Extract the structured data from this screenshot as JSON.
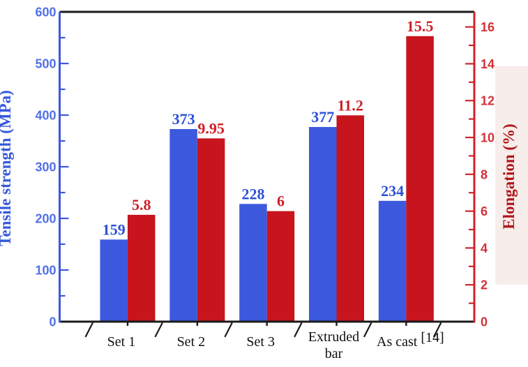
{
  "chart_data": {
    "type": "bar",
    "categories": [
      {
        "label": "Set 1"
      },
      {
        "label": "Set 2"
      },
      {
        "label": "Set 3"
      },
      {
        "label": "Extruded",
        "label2": "bar"
      },
      {
        "label": "As cast",
        "sup": "[14]"
      }
    ],
    "series": [
      {
        "name": "Tensile strength",
        "axis": "left",
        "color": "#3c59dd",
        "values": [
          159,
          373,
          228,
          377,
          234
        ],
        "labels": [
          "159",
          "373",
          "228",
          "377",
          "234"
        ],
        "label_color": "#2b50d8"
      },
      {
        "name": "Elongation",
        "axis": "right",
        "color": "#c8141d",
        "values": [
          5.8,
          9.95,
          6,
          11.2,
          15.5
        ],
        "labels": [
          "5.8",
          "9.95",
          "6",
          "11.2",
          "15.5"
        ],
        "label_color": "#d02028"
      }
    ],
    "left_axis": {
      "title": "Tensile strength (MPa)",
      "min": 0,
      "max": 600,
      "major_step": 100,
      "minor_step": 50,
      "ticks": [
        "0",
        "100",
        "200",
        "300",
        "400",
        "500",
        "600"
      ],
      "axis_color": "#3c58da",
      "tick_label_color": "#5170e8",
      "title_color": "#3558dd"
    },
    "right_axis": {
      "title": "Elongation (%)",
      "min": 0,
      "max": 16,
      "major_step": 2,
      "minor_step": 1,
      "ticks": [
        "0",
        "2",
        "4",
        "6",
        "8",
        "10",
        "12",
        "14",
        "16"
      ],
      "axis_color": "#cf2329",
      "tick_label_color": "#d23138",
      "title_color": "#b3151b",
      "title_bg": "#f7edea"
    },
    "x_axis": {
      "color": "#1a1a1a"
    },
    "grid": false,
    "legend": false
  }
}
